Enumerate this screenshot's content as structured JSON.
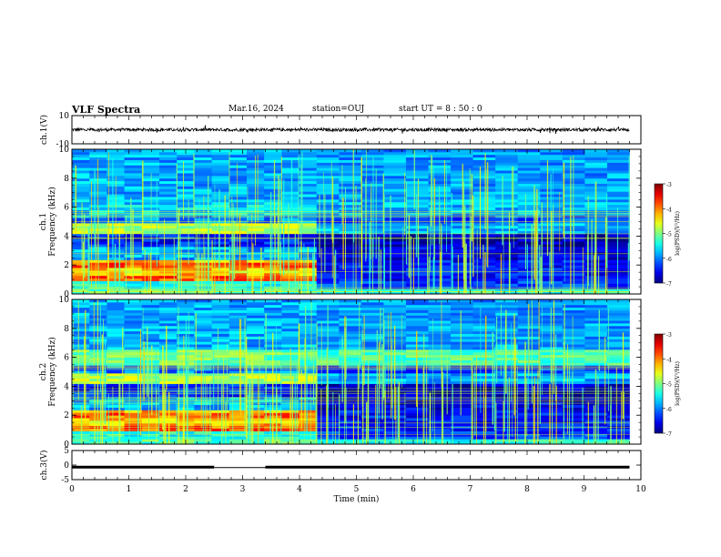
{
  "header": {
    "title": "VLF Spectra",
    "date": "Mar.16, 2024",
    "station": "station=OUJ",
    "start_ut": "start  UT =   8 : 50 : 0"
  },
  "chart_data": [
    {
      "type": "line",
      "panel": "ch1-waveform",
      "ylabel": "ch.1(V)",
      "ylim": [
        -10,
        10
      ],
      "y_tick_labels": [
        "10",
        "-10"
      ],
      "baseline": 0,
      "xlim": [
        0,
        10
      ]
    },
    {
      "type": "heatmap",
      "panel": "ch1-spectrogram",
      "ylabel_lines": [
        "ch.1",
        "Frequency (kHz)"
      ],
      "ylim": [
        0,
        10
      ],
      "y_tick_labels": [
        "0",
        "2",
        "4",
        "6",
        "8",
        "10"
      ],
      "xlim": [
        0,
        10
      ],
      "data_end_min": 9.8,
      "transition_min": 4.3,
      "colorbar": {
        "label": "log(PSD)(V²/Hz)",
        "ticks": [
          "-3",
          "-4",
          "-5",
          "-6",
          "-7"
        ],
        "range": [
          -7,
          -3
        ]
      }
    },
    {
      "type": "heatmap",
      "panel": "ch2-spectrogram",
      "ylabel_lines": [
        "ch.2",
        "Frequency (kHz)"
      ],
      "ylim": [
        0,
        10
      ],
      "y_tick_labels": [
        "0",
        "2",
        "4",
        "6",
        "8",
        "10"
      ],
      "xlim": [
        0,
        10
      ],
      "data_end_min": 9.8,
      "transition_min": 4.3,
      "colorbar": {
        "label": "log(PSD)(V²/Hz)",
        "ticks": [
          "-3",
          "-4",
          "-5",
          "-6",
          "-7"
        ],
        "range": [
          -7,
          -3
        ]
      }
    },
    {
      "type": "line",
      "panel": "ch3-waveform",
      "ylabel": "ch.3(V)",
      "ylim": [
        -5,
        5
      ],
      "y_tick_labels": [
        "5",
        "0",
        "-5"
      ],
      "level": -0.7,
      "gap_min": [
        2.5,
        3.4
      ],
      "xlim": [
        0,
        10
      ],
      "xlabel": "Time (min)",
      "x_tick_labels": [
        "0",
        "1",
        "2",
        "3",
        "4",
        "5",
        "6",
        "7",
        "8",
        "9",
        "10"
      ]
    }
  ]
}
